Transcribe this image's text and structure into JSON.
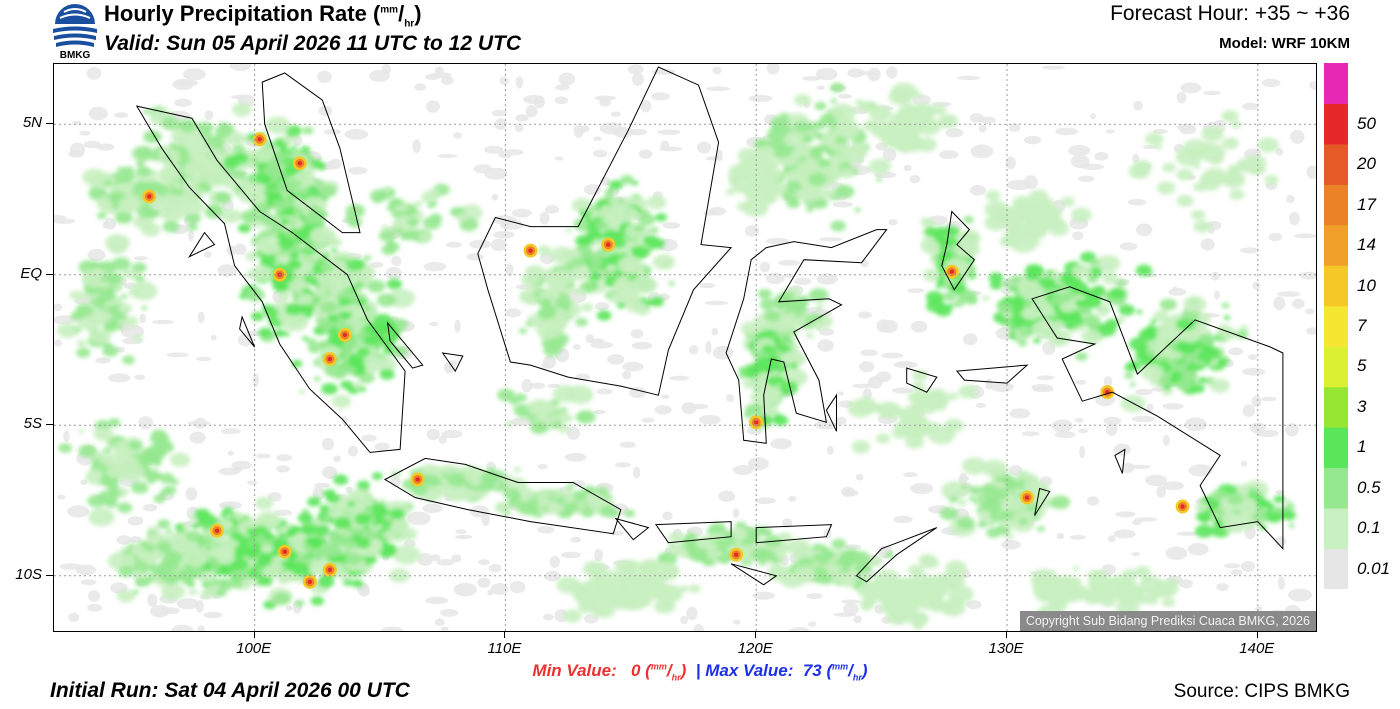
{
  "header": {
    "logo_text": "BMKG",
    "title_main": "Hourly Precipitation Rate (",
    "title_unit_num": "mm",
    "title_unit_den": "hr",
    "title_close": ")",
    "valid": "Valid: Sun 05 April 2026 11 UTC to 12 UTC",
    "forecast_hour": "Forecast Hour: +35 ~ +36",
    "model": "Model: WRF 10KM"
  },
  "map": {
    "lon_range": [
      92,
      142.4
    ],
    "lat_range": [
      -11.9,
      7.0
    ],
    "lat_ticks": [
      {
        "value": 5,
        "label": "5N"
      },
      {
        "value": 0,
        "label": "EQ"
      },
      {
        "value": -5,
        "label": "5S"
      },
      {
        "value": -10,
        "label": "10S"
      }
    ],
    "lon_ticks": [
      {
        "value": 100,
        "label": "100E"
      },
      {
        "value": 110,
        "label": "110E"
      },
      {
        "value": 120,
        "label": "120E"
      },
      {
        "value": 130,
        "label": "130E"
      },
      {
        "value": 140,
        "label": "140E"
      }
    ],
    "copyright": "Copyright Sub Bidang Prediksi Cuaca BMKG, 2026"
  },
  "colorbar": {
    "levels": [
      {
        "label": "0.01",
        "color": "#e6e6e6"
      },
      {
        "label": "0.1",
        "color": "#c8f0c0"
      },
      {
        "label": "0.5",
        "color": "#96e890"
      },
      {
        "label": "1",
        "color": "#5ae65a"
      },
      {
        "label": "3",
        "color": "#96e632"
      },
      {
        "label": "5",
        "color": "#dcf032"
      },
      {
        "label": "7",
        "color": "#f5e632"
      },
      {
        "label": "10",
        "color": "#f5c828"
      },
      {
        "label": "14",
        "color": "#f0a028"
      },
      {
        "label": "17",
        "color": "#eb8228"
      },
      {
        "label": "20",
        "color": "#e65a28"
      },
      {
        "label": "50",
        "color": "#e62828"
      },
      {
        "label": "",
        "color": "#e628b4"
      }
    ]
  },
  "footer": {
    "min_label": "Min Value:",
    "min_value": "0",
    "max_label": "Max Value:",
    "max_value": "73",
    "unit_num": "mm",
    "unit_den": "hr",
    "separator": "|",
    "initial_run": "Initial Run: Sat 04 April 2026 00 UTC",
    "source": "Source: CIPS BMKG"
  }
}
